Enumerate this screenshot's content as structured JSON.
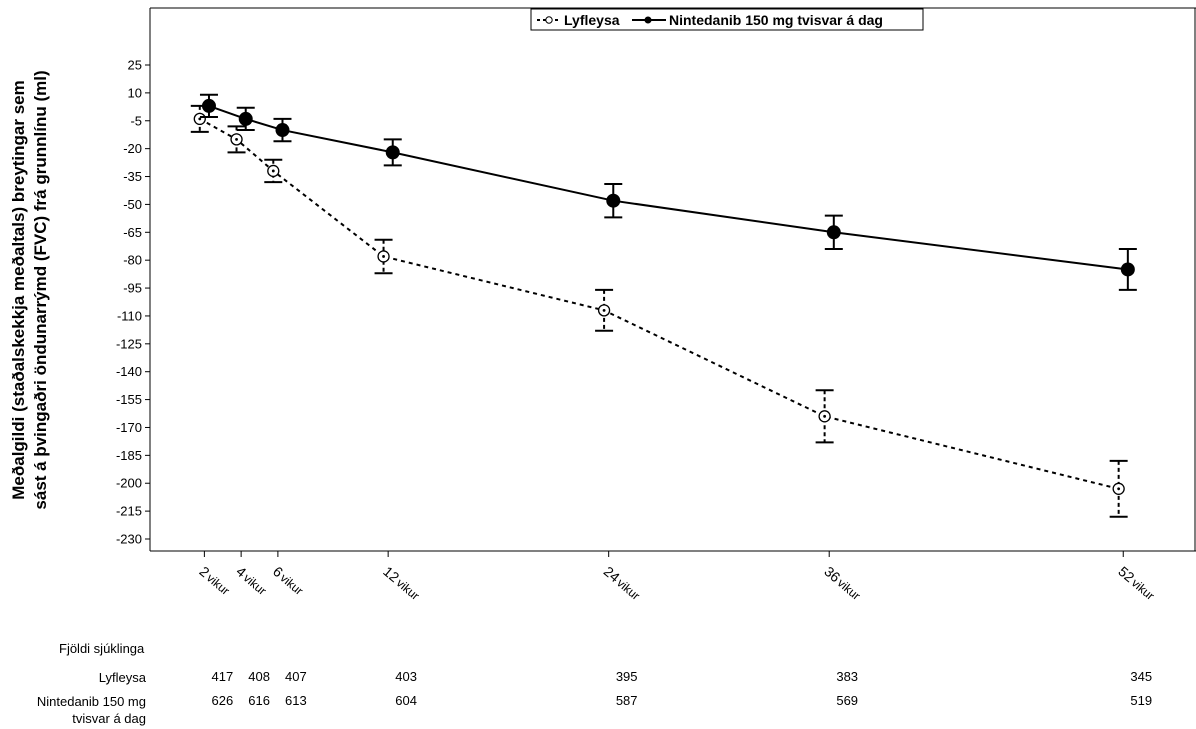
{
  "chart_data": {
    "type": "line",
    "ylabel_line1": "Meðalgildi (staðalskekkja meðaltals) breytingar sem",
    "ylabel_line2": "sást á þvingaðri öndunarrýmd (FVC) frá grunnlínu (ml)",
    "x_categories": [
      "2 vikur",
      "4 vikur",
      "6 vikur",
      "12 vikur",
      "24 vikur",
      "36 vikur",
      "52 vikur"
    ],
    "x_weeks": [
      2,
      4,
      6,
      12,
      24,
      36,
      52
    ],
    "ylim": [
      -238,
      40
    ],
    "yticks": [
      25,
      10,
      -5,
      -20,
      -35,
      -50,
      -65,
      -80,
      -95,
      -110,
      -125,
      -140,
      -155,
      -170,
      -185,
      -200,
      -215,
      -230
    ],
    "legend_position": "top-right",
    "series": [
      {
        "name": "Lyfleysa",
        "style": "dashed",
        "marker": "open-circle",
        "color": "#000000",
        "x_offset": -0.25,
        "values": [
          -4,
          -15,
          -32,
          -78,
          -107,
          -164,
          -203
        ],
        "error": [
          7,
          7,
          6,
          9,
          11,
          14,
          15
        ]
      },
      {
        "name": "Nintedanib 150 mg tvisvar á dag",
        "style": "solid",
        "marker": "filled-circle",
        "color": "#000000",
        "x_offset": 0.25,
        "values": [
          3,
          -4,
          -10,
          -22,
          -48,
          -65,
          -85
        ],
        "error": [
          6,
          6,
          6,
          7,
          9,
          9,
          11
        ]
      }
    ]
  },
  "number_at_risk": {
    "heading": "Fjöldi sjúklinga",
    "rows": [
      {
        "label": "Lyfleysa",
        "values": [
          "417",
          "408",
          "407",
          "403",
          "395",
          "383",
          "345"
        ]
      },
      {
        "label_line1": "Nintedanib 150 mg",
        "label_line2": "tvisvar á dag",
        "values": [
          "626",
          "616",
          "613",
          "604",
          "587",
          "569",
          "519"
        ]
      }
    ]
  }
}
